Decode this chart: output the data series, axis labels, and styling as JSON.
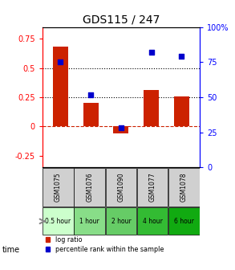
{
  "title": "GDS115 / 247",
  "samples": [
    "GSM1075",
    "GSM1076",
    "GSM1090",
    "GSM1077",
    "GSM1078"
  ],
  "time_labels": [
    "0.5 hour",
    "1 hour",
    "2 hour",
    "4 hour",
    "6 hour"
  ],
  "time_colors": [
    "#ccffcc",
    "#88dd88",
    "#66cc66",
    "#33bb33",
    "#11aa11"
  ],
  "log_ratio": [
    0.68,
    0.2,
    -0.06,
    0.31,
    0.26
  ],
  "percentile_rank": [
    75,
    52,
    28,
    82,
    79
  ],
  "bar_color": "#cc2200",
  "dot_color": "#0000cc",
  "ylim_left": [
    -0.35,
    0.85
  ],
  "ylim_right": [
    0,
    100
  ],
  "yticks_left": [
    -0.25,
    0,
    0.25,
    0.5,
    0.75
  ],
  "ytick_labels_left": [
    "-0.25",
    "0",
    "0.25",
    "0.5",
    "0.75"
  ],
  "yticks_right": [
    0,
    25,
    50,
    75,
    100
  ],
  "ytick_labels_right": [
    "0",
    "25",
    "50",
    "75",
    "100%"
  ],
  "hline_dashed_red": 0,
  "hlines_dotted_black": [
    0.25,
    0.5
  ],
  "background_color": "#ffffff",
  "legend_log_ratio": "log ratio",
  "legend_percentile": "percentile rank within the sample"
}
